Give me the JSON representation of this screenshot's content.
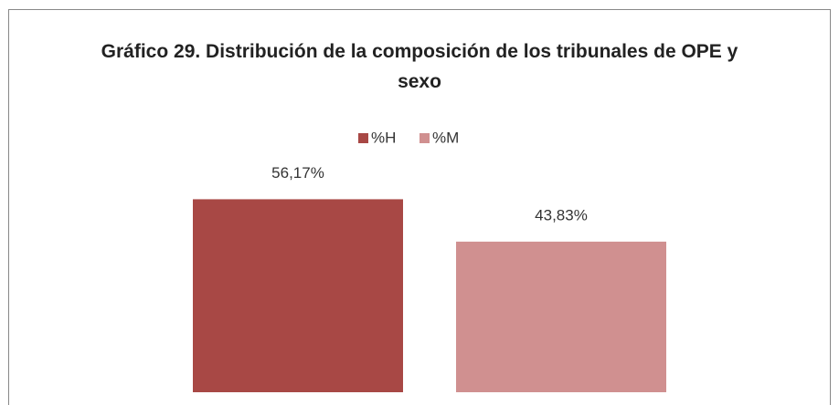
{
  "chart_data": {
    "type": "bar",
    "title": "Gráfico 29. Distribución de la composición de los tribunales de OPE y sexo",
    "categories": [
      null
    ],
    "series": [
      {
        "name": "%H",
        "color": "#a84845",
        "values": [
          56.17
        ],
        "value_labels": [
          "56,17%"
        ]
      },
      {
        "name": "%M",
        "color": "#d09090",
        "values": [
          43.83
        ],
        "value_labels": [
          "43,83%"
        ]
      }
    ],
    "ylim": [
      0,
      60
    ]
  }
}
